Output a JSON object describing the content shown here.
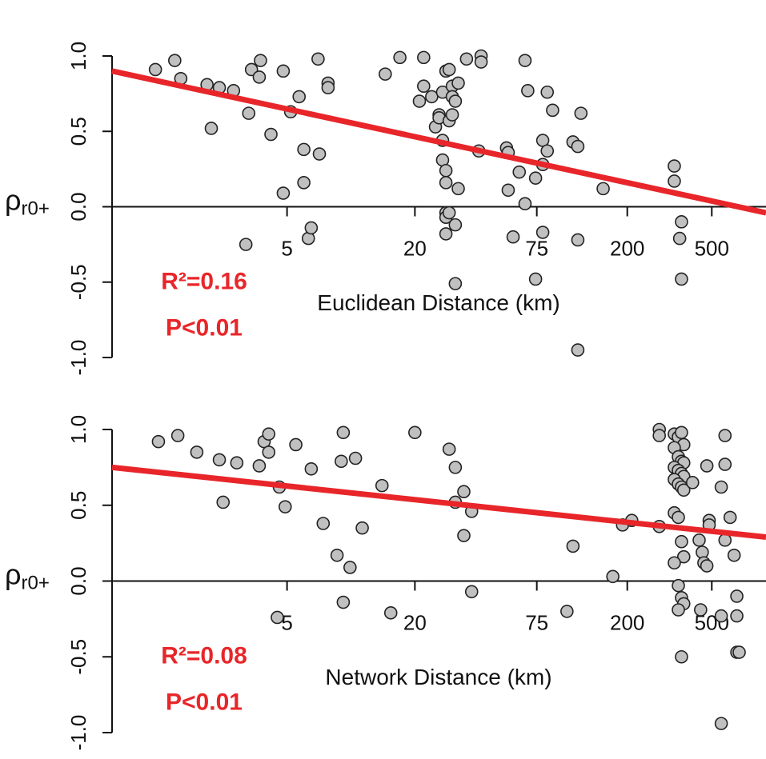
{
  "chart_data": [
    {
      "type": "scatter",
      "log_x": true,
      "color": "#c0c0c0",
      "xlabel": "Euclidean Distance (km)",
      "ylabel": "ρ",
      "ylabel_subscript": "r0+",
      "annotations": [
        "R²=0.16",
        "P<0.01"
      ],
      "annotation_color": "#e8262a",
      "xlim": [
        0.75,
        900
      ],
      "ylim": [
        -1,
        1
      ],
      "xticks": [
        5,
        20,
        75,
        200,
        500
      ],
      "yticks": [
        {
          "value": -1,
          "label": "-1.0"
        },
        -0.5,
        {
          "value": 0,
          "label": "0.0"
        },
        0.5,
        {
          "value": 1,
          "label": "1.0"
        }
      ],
      "fit_line": {
        "x": [
          0.75,
          900
        ],
        "y": [
          0.9,
          -0.04
        ],
        "color": "#e8262a"
      },
      "x": [
        1.2,
        1.48,
        1.58,
        2.1,
        2.2,
        2.4,
        2.8,
        3.2,
        3.3,
        3.4,
        3.7,
        3.75,
        4.2,
        4.8,
        4.8,
        5.2,
        5.7,
        6.0,
        6.0,
        6.3,
        6.5,
        7.0,
        7.1,
        7.8,
        7.8,
        14.5,
        17,
        22,
        21,
        22,
        24,
        25,
        26,
        26,
        27,
        27,
        27,
        28,
        28,
        28,
        28,
        28,
        28,
        29,
        29,
        29,
        30,
        30,
        30,
        31,
        31,
        32,
        32,
        31,
        35,
        40,
        41,
        41,
        54,
        55,
        58,
        55,
        62,
        66,
        68,
        66,
        74,
        74,
        80,
        80,
        80,
        84,
        84,
        89,
        111,
        117,
        121,
        117,
        117,
        154,
        333,
        333,
        353,
        360,
        360
      ],
      "y": [
        0.91,
        0.97,
        0.85,
        0.81,
        0.52,
        0.79,
        0.77,
        -0.25,
        0.62,
        0.91,
        0.86,
        0.97,
        0.48,
        0.9,
        0.09,
        0.63,
        0.73,
        0.38,
        0.16,
        -0.21,
        -0.14,
        0.98,
        0.35,
        0.82,
        0.79,
        0.88,
        0.99,
        0.99,
        0.7,
        0.8,
        0.73,
        0.53,
        0.61,
        0.59,
        0.76,
        0.44,
        0.31,
        0.9,
        0.24,
        0.16,
        -0.04,
        -0.07,
        -0.18,
        0.91,
        0.57,
        -0.04,
        0.8,
        0.73,
        0.61,
        -0.12,
        0.7,
        0.82,
        0.12,
        -0.51,
        0.98,
        0.37,
        1.0,
        0.96,
        0.39,
        0.36,
        -0.2,
        0.11,
        0.23,
        0.97,
        0.77,
        0.02,
        0.19,
        -0.48,
        0.44,
        0.28,
        -0.17,
        0.37,
        0.76,
        0.64,
        0.43,
        0.4,
        0.62,
        -0.22,
        -0.95,
        0.12,
        0.27,
        0.17,
        -0.21,
        -0.1,
        -0.48
      ]
    },
    {
      "type": "scatter",
      "log_x": true,
      "color": "#c0c0c0",
      "xlabel": "Network Distance (km)",
      "ylabel": "ρ",
      "ylabel_subscript": "r0+",
      "annotations": [
        "R²=0.08",
        "P<0.01"
      ],
      "annotation_color": "#e8262a",
      "xlim": [
        0.75,
        900
      ],
      "ylim": [
        -1,
        1
      ],
      "xticks": [
        5,
        20,
        75,
        200,
        500
      ],
      "yticks": [
        {
          "value": -1,
          "label": "-1.0"
        },
        -0.5,
        {
          "value": 0,
          "label": "0.0"
        },
        0.5,
        {
          "value": 1,
          "label": "1.0"
        }
      ],
      "fit_line": {
        "x": [
          0.75,
          900
        ],
        "y": [
          0.75,
          0.29
        ],
        "color": "#e8262a"
      },
      "x": [
        1.24,
        1.53,
        1.88,
        2.4,
        2.5,
        2.9,
        3.7,
        3.9,
        4.1,
        4.1,
        4.5,
        4.6,
        4.9,
        5.5,
        6.5,
        7.4,
        8.6,
        9.0,
        9.2,
        9.2,
        9.9,
        10.5,
        11.3,
        14,
        15.4,
        20,
        29,
        31,
        31,
        34,
        34,
        37,
        37,
        111,
        104,
        171,
        190,
        210,
        283,
        283,
        283,
        333,
        348,
        360,
        369,
        333,
        348,
        360,
        369,
        333,
        348,
        360,
        369,
        333,
        348,
        360,
        369,
        333,
        348,
        360,
        369,
        333,
        348,
        360,
        369,
        348,
        360,
        406,
        436,
        451,
        459,
        474,
        474,
        486,
        486,
        443,
        577,
        577,
        554,
        577,
        554,
        554,
        610,
        637,
        656,
        656,
        656,
        673
      ],
      "y": [
        0.92,
        0.96,
        0.85,
        0.8,
        0.52,
        0.78,
        0.76,
        0.92,
        0.97,
        0.85,
        -0.24,
        0.62,
        0.49,
        0.9,
        0.74,
        0.38,
        0.17,
        0.79,
        0.98,
        -0.14,
        0.09,
        0.81,
        0.35,
        0.63,
        -0.21,
        0.98,
        0.87,
        0.52,
        0.75,
        0.59,
        0.3,
        0.46,
        -0.07,
        0.23,
        -0.2,
        0.03,
        0.37,
        0.4,
        1.0,
        0.96,
        0.36,
        0.97,
        0.95,
        0.98,
        0.9,
        0.88,
        0.82,
        0.79,
        0.78,
        0.75,
        0.73,
        0.71,
        0.69,
        0.67,
        0.64,
        0.62,
        0.6,
        0.45,
        0.42,
        0.26,
        0.16,
        0.12,
        -0.03,
        -0.11,
        -0.15,
        -0.19,
        -0.5,
        0.65,
        0.27,
        0.19,
        0.12,
        0.76,
        0.1,
        0.4,
        0.37,
        -0.19,
        0.96,
        0.77,
        0.62,
        0.27,
        -0.23,
        -0.94,
        0.42,
        0.17,
        -0.23,
        -0.1,
        -0.47,
        -0.47
      ]
    }
  ]
}
